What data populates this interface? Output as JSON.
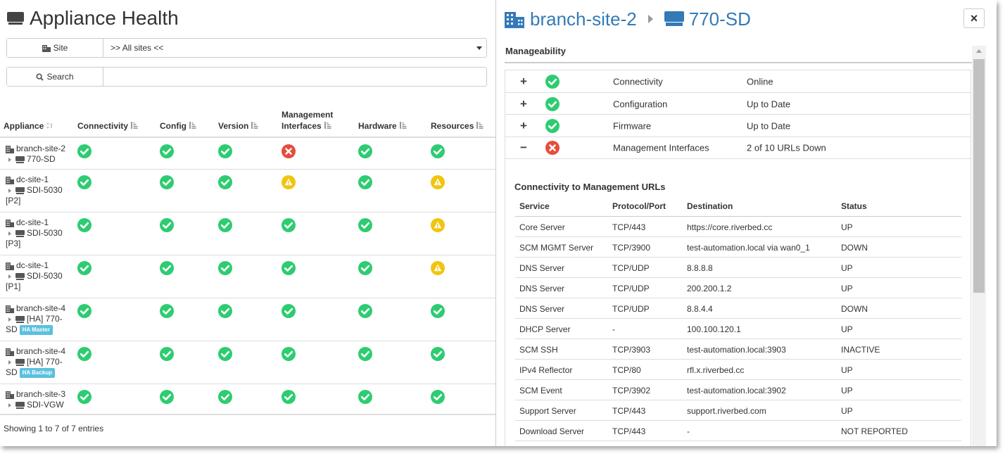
{
  "left": {
    "title": "Appliance Health",
    "site_filter": {
      "label": "Site",
      "value": ">> All sites <<"
    },
    "search": {
      "label": "Search",
      "value": ""
    },
    "columns": [
      {
        "label": "Appliance"
      },
      {
        "label": "Connectivity"
      },
      {
        "label": "Config"
      },
      {
        "label": "Version"
      },
      {
        "label_line1": "Management",
        "label_line2": "Interfaces"
      },
      {
        "label": "Hardware"
      },
      {
        "label": "Resources"
      }
    ],
    "rows": [
      {
        "site": "branch-site-2",
        "device": "770-SD",
        "extra": "",
        "badge": "",
        "statuses": [
          "ok",
          "ok",
          "ok",
          "error",
          "ok",
          "ok"
        ]
      },
      {
        "site": "dc-site-1",
        "device": "SDI-5030",
        "extra": "[P2]",
        "badge": "",
        "statuses": [
          "ok",
          "ok",
          "ok",
          "warn",
          "ok",
          "warn"
        ]
      },
      {
        "site": "dc-site-1",
        "device": "SDI-5030",
        "extra": "[P3]",
        "badge": "",
        "statuses": [
          "ok",
          "ok",
          "ok",
          "ok",
          "ok",
          "warn"
        ]
      },
      {
        "site": "dc-site-1",
        "device": "SDI-5030",
        "extra": "[P1]",
        "badge": "",
        "statuses": [
          "ok",
          "ok",
          "ok",
          "ok",
          "ok",
          "warn"
        ]
      },
      {
        "site": "branch-site-4",
        "device": "[HA] 770-",
        "extra": "SD",
        "badge": "HA Master",
        "statuses": [
          "ok",
          "ok",
          "ok",
          "ok",
          "ok",
          "ok"
        ]
      },
      {
        "site": "branch-site-4",
        "device": "[HA] 770-",
        "extra": "SD",
        "badge": "HA Backup",
        "statuses": [
          "ok",
          "ok",
          "ok",
          "ok",
          "ok",
          "ok"
        ]
      },
      {
        "site": "branch-site-3",
        "device": "SDI-VGW",
        "extra": "",
        "badge": "",
        "statuses": [
          "ok",
          "ok",
          "ok",
          "ok",
          "ok",
          "ok"
        ]
      }
    ],
    "footer": "Showing 1 to 7 of 7 entries"
  },
  "right": {
    "breadcrumb_site": "branch-site-2",
    "breadcrumb_device": "770-SD",
    "close_label": "×",
    "section_title": "Manageability",
    "items": [
      {
        "toggle": "+",
        "status": "ok",
        "name": "Connectivity",
        "value": "Online"
      },
      {
        "toggle": "+",
        "status": "ok",
        "name": "Configuration",
        "value": "Up to Date"
      },
      {
        "toggle": "+",
        "status": "ok",
        "name": "Firmware",
        "value": "Up to Date"
      },
      {
        "toggle": "−",
        "status": "error",
        "name": "Management Interfaces",
        "value": "2 of 10 URLs Down"
      }
    ],
    "urls_title": "Connectivity to Management URLs",
    "url_headers": [
      "Service",
      "Protocol/Port",
      "Destination",
      "Status"
    ],
    "urls": [
      [
        "Core Server",
        "TCP/443",
        "https://core.riverbed.cc",
        "UP"
      ],
      [
        "SCM MGMT Server",
        "TCP/3900",
        "test-automation.local via wan0_1",
        "DOWN"
      ],
      [
        "DNS Server",
        "TCP/UDP",
        "8.8.8.8",
        "UP"
      ],
      [
        "DNS Server",
        "TCP/UDP",
        "200.200.1.2",
        "UP"
      ],
      [
        "DNS Server",
        "TCP/UDP",
        "8.8.4.4",
        "DOWN"
      ],
      [
        "DHCP Server",
        "-",
        "100.100.120.1",
        "UP"
      ],
      [
        "SCM SSH",
        "TCP/3903",
        "test-automation.local:3903",
        "INACTIVE"
      ],
      [
        "IPv4 Reflector",
        "TCP/80",
        "rfl.x.riverbed.cc",
        "UP"
      ],
      [
        "SCM Event",
        "TCP/3902",
        "test-automation.local:3902",
        "UP"
      ],
      [
        "Support Server",
        "TCP/443",
        "support.riverbed.com",
        "UP"
      ],
      [
        "Download Server",
        "TCP/443",
        "-",
        "NOT REPORTED"
      ]
    ]
  },
  "colors": {
    "ok": "#2ecc71",
    "error": "#e74c3c",
    "warn": "#f1c40f",
    "link": "#337ab7",
    "badge": "#5bc0de"
  }
}
